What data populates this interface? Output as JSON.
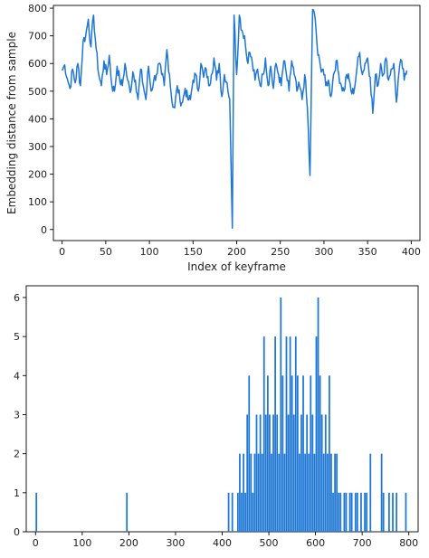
{
  "colors": {
    "series": "#1f77d4",
    "axis": "#000000",
    "text": "#222222",
    "background": "#ffffff"
  },
  "chart_data": [
    {
      "type": "line",
      "xlabel": "Index of keyframe",
      "ylabel": "Embedding distance from sample",
      "xlim": [
        -10,
        410
      ],
      "ylim": [
        -40,
        810
      ],
      "xticks": [
        0,
        50,
        100,
        150,
        200,
        250,
        300,
        350,
        400
      ],
      "yticks": [
        0,
        100,
        200,
        300,
        400,
        500,
        600,
        700,
        800
      ],
      "grid": false,
      "control_points": [
        [
          0,
          575
        ],
        [
          3,
          595
        ],
        [
          6,
          545
        ],
        [
          9,
          510
        ],
        [
          12,
          580
        ],
        [
          15,
          530
        ],
        [
          18,
          600
        ],
        [
          21,
          520
        ],
        [
          24,
          680
        ],
        [
          27,
          700
        ],
        [
          30,
          760
        ],
        [
          33,
          660
        ],
        [
          36,
          775
        ],
        [
          39,
          650
        ],
        [
          42,
          560
        ],
        [
          45,
          520
        ],
        [
          48,
          610
        ],
        [
          51,
          560
        ],
        [
          54,
          630
        ],
        [
          57,
          520
        ],
        [
          60,
          500
        ],
        [
          63,
          590
        ],
        [
          66,
          540
        ],
        [
          69,
          520
        ],
        [
          72,
          600
        ],
        [
          75,
          540
        ],
        [
          78,
          495
        ],
        [
          81,
          570
        ],
        [
          84,
          540
        ],
        [
          87,
          470
        ],
        [
          90,
          580
        ],
        [
          93,
          520
        ],
        [
          96,
          470
        ],
        [
          99,
          590
        ],
        [
          102,
          500
        ],
        [
          105,
          540
        ],
        [
          108,
          560
        ],
        [
          111,
          600
        ],
        [
          114,
          560
        ],
        [
          117,
          520
        ],
        [
          120,
          650
        ],
        [
          123,
          560
        ],
        [
          126,
          460
        ],
        [
          129,
          440
        ],
        [
          132,
          520
        ],
        [
          135,
          470
        ],
        [
          138,
          460
        ],
        [
          141,
          510
        ],
        [
          144,
          470
        ],
        [
          147,
          470
        ],
        [
          150,
          540
        ],
        [
          153,
          560
        ],
        [
          156,
          500
        ],
        [
          159,
          600
        ],
        [
          162,
          550
        ],
        [
          165,
          580
        ],
        [
          168,
          520
        ],
        [
          171,
          560
        ],
        [
          174,
          620
        ],
        [
          177,
          540
        ],
        [
          180,
          600
        ],
        [
          183,
          480
        ],
        [
          186,
          560
        ],
        [
          189,
          530
        ],
        [
          192,
          470
        ],
        [
          195,
          5
        ],
        [
          197,
          775
        ],
        [
          200,
          560
        ],
        [
          203,
          775
        ],
        [
          206,
          720
        ],
        [
          209,
          700
        ],
        [
          212,
          610
        ],
        [
          215,
          640
        ],
        [
          218,
          600
        ],
        [
          221,
          540
        ],
        [
          224,
          580
        ],
        [
          227,
          520
        ],
        [
          230,
          560
        ],
        [
          233,
          620
        ],
        [
          236,
          520
        ],
        [
          239,
          590
        ],
        [
          242,
          510
        ],
        [
          245,
          600
        ],
        [
          248,
          560
        ],
        [
          251,
          520
        ],
        [
          254,
          610
        ],
        [
          257,
          560
        ],
        [
          260,
          500
        ],
        [
          263,
          610
        ],
        [
          266,
          560
        ],
        [
          269,
          500
        ],
        [
          272,
          520
        ],
        [
          275,
          470
        ],
        [
          278,
          560
        ],
        [
          281,
          440
        ],
        [
          284,
          195
        ],
        [
          287,
          795
        ],
        [
          290,
          760
        ],
        [
          293,
          630
        ],
        [
          296,
          590
        ],
        [
          299,
          580
        ],
        [
          302,
          520
        ],
        [
          305,
          540
        ],
        [
          308,
          480
        ],
        [
          311,
          560
        ],
        [
          314,
          610
        ],
        [
          317,
          560
        ],
        [
          320,
          520
        ],
        [
          323,
          500
        ],
        [
          326,
          560
        ],
        [
          329,
          540
        ],
        [
          332,
          490
        ],
        [
          335,
          510
        ],
        [
          338,
          590
        ],
        [
          341,
          640
        ],
        [
          344,
          560
        ],
        [
          347,
          600
        ],
        [
          350,
          620
        ],
        [
          353,
          550
        ],
        [
          356,
          420
        ],
        [
          359,
          560
        ],
        [
          362,
          520
        ],
        [
          365,
          600
        ],
        [
          368,
          560
        ],
        [
          371,
          620
        ],
        [
          374,
          540
        ],
        [
          377,
          580
        ],
        [
          380,
          600
        ],
        [
          383,
          460
        ],
        [
          386,
          570
        ],
        [
          389,
          610
        ],
        [
          392,
          540
        ],
        [
          395,
          575
        ]
      ]
    },
    {
      "type": "bar",
      "xlim": [
        -20,
        820
      ],
      "ylim": [
        0,
        6.3
      ],
      "xticks": [
        0,
        100,
        200,
        300,
        400,
        500,
        600,
        700,
        800
      ],
      "yticks": [
        0,
        1,
        2,
        3,
        4,
        5,
        6
      ],
      "grid": false,
      "bin_width": 4,
      "bins": [
        [
          0,
          1
        ],
        [
          194,
          1
        ],
        [
          412,
          1
        ],
        [
          420,
          1
        ],
        [
          432,
          1
        ],
        [
          436,
          2
        ],
        [
          440,
          1
        ],
        [
          444,
          2
        ],
        [
          448,
          1
        ],
        [
          452,
          3
        ],
        [
          456,
          4
        ],
        [
          460,
          2
        ],
        [
          464,
          1
        ],
        [
          468,
          2
        ],
        [
          472,
          3
        ],
        [
          476,
          2
        ],
        [
          480,
          3
        ],
        [
          484,
          2
        ],
        [
          488,
          5
        ],
        [
          492,
          3
        ],
        [
          496,
          4
        ],
        [
          500,
          3
        ],
        [
          504,
          2
        ],
        [
          508,
          3
        ],
        [
          512,
          5
        ],
        [
          516,
          3
        ],
        [
          520,
          2
        ],
        [
          524,
          6
        ],
        [
          528,
          4
        ],
        [
          532,
          2
        ],
        [
          536,
          5
        ],
        [
          540,
          3
        ],
        [
          544,
          5
        ],
        [
          548,
          4
        ],
        [
          552,
          3
        ],
        [
          556,
          5
        ],
        [
          560,
          4
        ],
        [
          564,
          2
        ],
        [
          568,
          3
        ],
        [
          572,
          4
        ],
        [
          576,
          2
        ],
        [
          580,
          3
        ],
        [
          584,
          2
        ],
        [
          588,
          4
        ],
        [
          592,
          3
        ],
        [
          596,
          2
        ],
        [
          600,
          5
        ],
        [
          604,
          6
        ],
        [
          608,
          4
        ],
        [
          612,
          3
        ],
        [
          616,
          2
        ],
        [
          620,
          3
        ],
        [
          624,
          2
        ],
        [
          628,
          4
        ],
        [
          632,
          2
        ],
        [
          636,
          1
        ],
        [
          640,
          2
        ],
        [
          644,
          2
        ],
        [
          648,
          1
        ],
        [
          652,
          1
        ],
        [
          660,
          1
        ],
        [
          664,
          1
        ],
        [
          672,
          1
        ],
        [
          676,
          1
        ],
        [
          684,
          1
        ],
        [
          688,
          1
        ],
        [
          696,
          1
        ],
        [
          704,
          1
        ],
        [
          708,
          1
        ],
        [
          716,
          2
        ],
        [
          740,
          2
        ],
        [
          744,
          1
        ],
        [
          756,
          1
        ],
        [
          764,
          1
        ],
        [
          772,
          1
        ],
        [
          792,
          1
        ]
      ]
    }
  ]
}
